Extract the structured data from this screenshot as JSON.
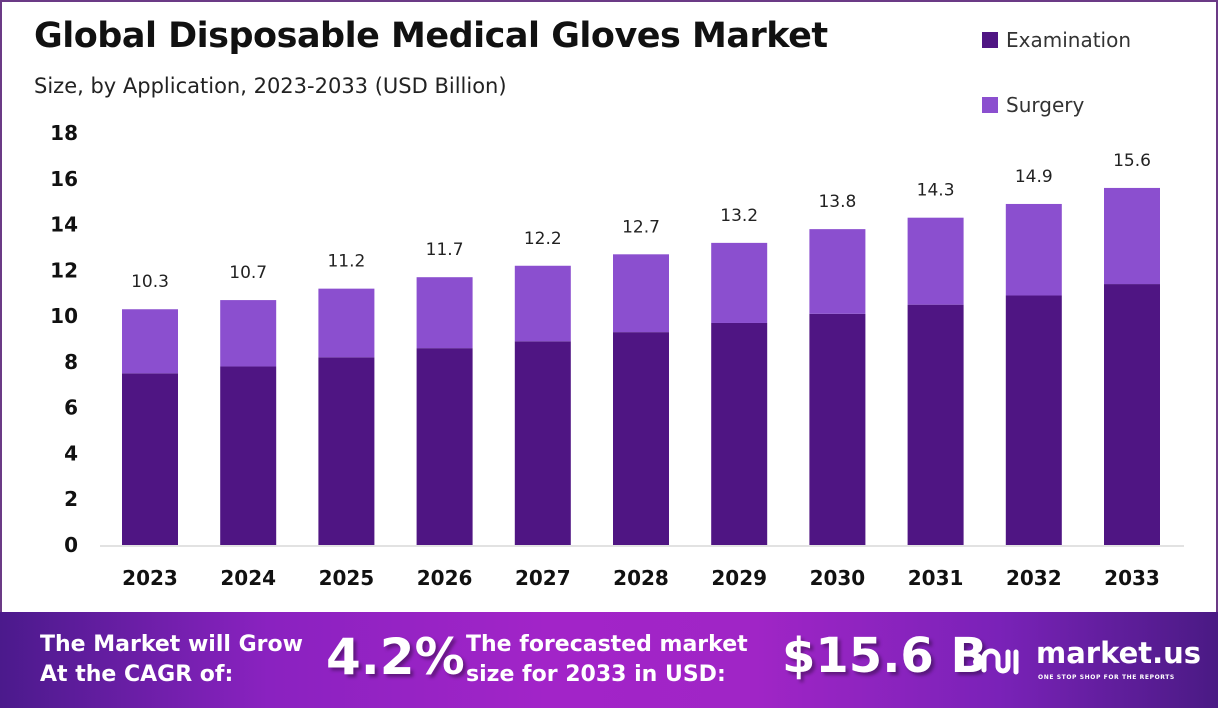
{
  "chart_data": {
    "type": "bar",
    "stacked": true,
    "title": "Global Disposable Medical Gloves Market",
    "subtitle": "Size, by Application, 2023-2033 (USD Billion)",
    "xlabel": "",
    "ylabel": "",
    "ylim": [
      0,
      18
    ],
    "yticks": [
      0,
      2,
      4,
      6,
      8,
      10,
      12,
      14,
      16,
      18
    ],
    "grid": false,
    "legend_position": "top-right",
    "categories": [
      "2023",
      "2024",
      "2025",
      "2026",
      "2027",
      "2028",
      "2029",
      "2030",
      "2031",
      "2032",
      "2033"
    ],
    "series": [
      {
        "name": "Examination",
        "color": "#4f1583",
        "values": [
          7.5,
          7.8,
          8.2,
          8.6,
          8.9,
          9.3,
          9.7,
          10.1,
          10.5,
          10.9,
          11.4
        ]
      },
      {
        "name": "Surgery",
        "color": "#8b4fcf",
        "values": [
          2.8,
          2.9,
          3.0,
          3.1,
          3.3,
          3.4,
          3.5,
          3.7,
          3.8,
          4.0,
          4.2
        ]
      }
    ],
    "totals": [
      10.3,
      10.7,
      11.2,
      11.7,
      12.2,
      12.7,
      13.2,
      13.8,
      14.3,
      14.9,
      15.6
    ],
    "total_labels": [
      "10.3",
      "10.7",
      "11.2",
      "11.7",
      "12.2",
      "12.7",
      "13.2",
      "13.8",
      "14.3",
      "14.9",
      "15.6"
    ]
  },
  "banner": {
    "cagr_label_line1": "The Market will Grow",
    "cagr_label_line2": "At the CAGR of:",
    "cagr_value": "4.2%",
    "forecast_label_line1": "The forecasted market",
    "forecast_label_line2": "size for 2033 in USD:",
    "forecast_value": "$15.6 B",
    "brand_name": "market.us",
    "brand_tagline": "ONE STOP SHOP FOR THE REPORTS"
  }
}
